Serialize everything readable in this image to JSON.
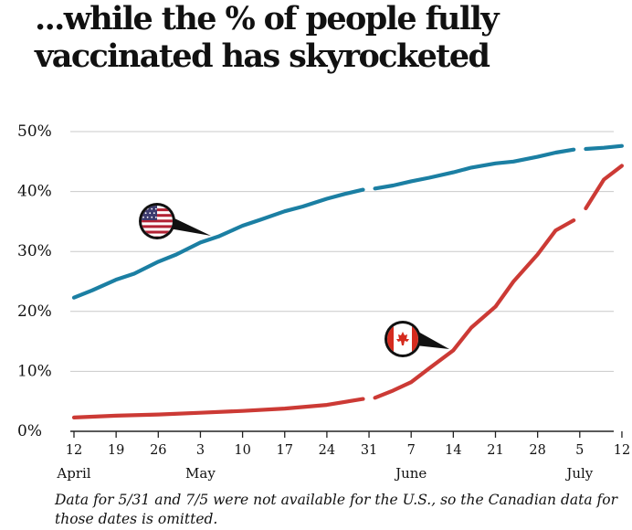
{
  "title": "...while the % of people fully vaccinated has skyrocketed",
  "note": "Data for 5/31 and 7/5 were not available for the U.S., so the Canadian data for those dates is omitted.",
  "icons": {
    "us": "us-flag-icon",
    "canada": "canada-flag-icon"
  },
  "chart_data": {
    "type": "line",
    "title": "...while the % of people fully vaccinated has skyrocketed",
    "xlabel": "",
    "ylabel": "",
    "ylim": [
      0,
      50
    ],
    "grid": true,
    "x_axis": "dates from Apr 12 to Jul 12 (2021)",
    "x_ticks": [
      "12",
      "19",
      "26",
      "3",
      "10",
      "17",
      "24",
      "31",
      "7",
      "14",
      "21",
      "28",
      "5",
      "12"
    ],
    "tick_dates": [
      "04-12",
      "04-19",
      "04-26",
      "05-03",
      "05-10",
      "05-17",
      "05-24",
      "05-31",
      "06-07",
      "06-14",
      "06-21",
      "06-28",
      "07-05",
      "07-12"
    ],
    "month_labels": [
      {
        "label": "April",
        "date": "04-12"
      },
      {
        "label": "May",
        "date": "05-03"
      },
      {
        "label": "June",
        "date": "06-07"
      },
      {
        "label": "July",
        "date": "07-05"
      }
    ],
    "y_ticks": [
      "0%",
      "10%",
      "20%",
      "30%",
      "40%",
      "50%"
    ],
    "y_tick_values": [
      0,
      10,
      20,
      30,
      40,
      50
    ],
    "missing_dates": [
      "05-31",
      "07-05"
    ],
    "series": [
      {
        "key": "us",
        "color": "#1b7fa3",
        "points": [
          [
            "04-12",
            22.3
          ],
          [
            "04-15",
            23.5
          ],
          [
            "04-19",
            25.3
          ],
          [
            "04-22",
            26.3
          ],
          [
            "04-26",
            28.3
          ],
          [
            "04-29",
            29.5
          ],
          [
            "05-03",
            31.5
          ],
          [
            "05-06",
            32.5
          ],
          [
            "05-10",
            34.3
          ],
          [
            "05-13",
            35.3
          ],
          [
            "05-17",
            36.7
          ],
          [
            "05-20",
            37.5
          ],
          [
            "05-24",
            38.8
          ],
          [
            "05-27",
            39.6
          ],
          [
            "05-30",
            40.3
          ],
          [
            "06-01",
            40.5
          ],
          [
            "06-04",
            41.0
          ],
          [
            "06-07",
            41.7
          ],
          [
            "06-10",
            42.3
          ],
          [
            "06-14",
            43.2
          ],
          [
            "06-17",
            44.0
          ],
          [
            "06-21",
            44.7
          ],
          [
            "06-24",
            45.0
          ],
          [
            "06-28",
            45.8
          ],
          [
            "07-01",
            46.5
          ],
          [
            "07-04",
            47.0
          ],
          [
            "07-06",
            47.1
          ],
          [
            "07-09",
            47.3
          ],
          [
            "07-12",
            47.6
          ]
        ]
      },
      {
        "key": "canada",
        "color": "#cc3a35",
        "points": [
          [
            "04-12",
            2.3
          ],
          [
            "04-19",
            2.6
          ],
          [
            "04-26",
            2.8
          ],
          [
            "05-03",
            3.1
          ],
          [
            "05-10",
            3.4
          ],
          [
            "05-17",
            3.8
          ],
          [
            "05-24",
            4.4
          ],
          [
            "05-30",
            5.4
          ],
          [
            "06-01",
            5.6
          ],
          [
            "06-04",
            6.8
          ],
          [
            "06-07",
            8.2
          ],
          [
            "06-10",
            10.5
          ],
          [
            "06-14",
            13.5
          ],
          [
            "06-17",
            17.3
          ],
          [
            "06-21",
            20.8
          ],
          [
            "06-24",
            25.0
          ],
          [
            "06-28",
            29.5
          ],
          [
            "07-01",
            33.5
          ],
          [
            "07-04",
            35.2
          ],
          [
            "07-06",
            37.2
          ],
          [
            "07-09",
            42.0
          ],
          [
            "07-12",
            44.3
          ]
        ]
      }
    ]
  }
}
